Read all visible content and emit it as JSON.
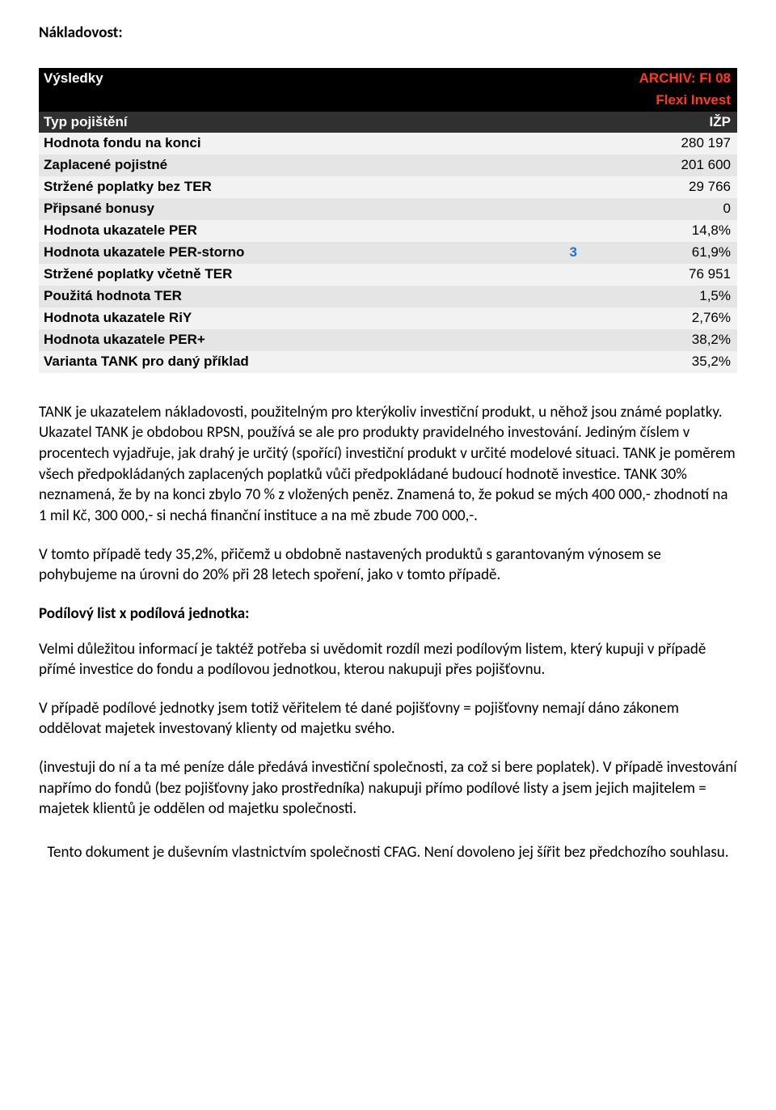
{
  "title": "Nákladovost:",
  "table": {
    "header1": {
      "left": "Výsledky",
      "right": "ARCHIV: FI 08",
      "bg": "#000000",
      "left_color": "#ffffff",
      "right_color": "#ff3b1f"
    },
    "header2": {
      "left": "",
      "right": "Flexi Invest",
      "bg": "#000000",
      "right_color": "#ff3b1f"
    },
    "header3": {
      "left": "Typ pojištění",
      "right": "IŽP",
      "bg": "#303030",
      "right_color": "#ff3b1f"
    },
    "rows": [
      {
        "label": "Hodnota fondu na konci",
        "mid": "",
        "val": "280 197",
        "shade": "lt"
      },
      {
        "label": "Zaplacené pojistné",
        "mid": "",
        "val": "201 600",
        "shade": "md"
      },
      {
        "label": "Stržené poplatky bez TER",
        "mid": "",
        "val": "29 766",
        "shade": "lt"
      },
      {
        "label": "Připsané bonusy",
        "mid": "",
        "val": "0",
        "shade": "md"
      },
      {
        "label": "Hodnota ukazatele PER",
        "mid": "",
        "val": "14,8%",
        "shade": "lt"
      },
      {
        "label": "Hodnota ukazatele PER-storno",
        "mid": "3",
        "val": "61,9%",
        "shade": "md"
      },
      {
        "label": "Stržené poplatky včetně TER",
        "mid": "",
        "val": "76 951",
        "shade": "lt"
      },
      {
        "label": "Použitá hodnota TER",
        "mid": "",
        "val": "1,5%",
        "shade": "md"
      },
      {
        "label": "Hodnota ukazatele RiY",
        "mid": "",
        "val": "2,76%",
        "shade": "lt"
      },
      {
        "label": "Hodnota ukazatele PER+",
        "mid": "",
        "val": "38,2%",
        "shade": "md"
      },
      {
        "label": "Varianta TANK pro daný příklad",
        "mid": "",
        "val": "35,2%",
        "shade": "lt"
      }
    ],
    "shade_lt": "#f2f2f2",
    "shade_md": "#e5e5e5",
    "label_fontweight": "bold",
    "mid_color": "#1e6fd6",
    "fontsize": 17
  },
  "paragraphs": {
    "p1": "TANK je ukazatelem nákladovosti, použitelným pro kterýkoliv investiční produkt, u něhož jsou známé poplatky. Ukazatel TANK je obdobou RPSN, používá se ale pro produkty pravidelného investování. Jediným číslem v procentech vyjadřuje, jak drahý je určitý (spořící) investiční produkt v určité modelové situaci. TANK je poměrem všech předpokládaných zaplacených poplatků vůči předpokládané budoucí hodnotě investice. TANK 30% neznamená, že by na konci zbylo 70 % z vložených peněz. Znamená to, že pokud se mých 400 000,- zhodnotí na 1 mil Kč, 300 000,- si nechá finanční instituce a na mě zbude 700 000,-.",
    "p2": "V tomto případě tedy 35,2%, přičemž u obdobně nastavených produktů s garantovaným výnosem se pohybujeme na úrovni do 20% při 28 letech spoření, jako v tomto případě.",
    "sub": "Podílový list x podílová jednotka:",
    "p3": "Velmi důležitou informací je taktéž potřeba si uvědomit rozdíl mezi podílovým listem, který kupuji v případě přímé investice do fondu a podílovou jednotkou, kterou nakupuji přes pojišťovnu.",
    "p4": "V případě podílové jednotky jsem totiž věřitelem té dané pojišťovny = pojišťovny nemají dáno zákonem oddělovat majetek investovaný klienty od majetku svého.",
    "p5": "(investuji do ní a ta mé peníze dále předává investiční společnosti, za což si bere poplatek). V případě investování napřímo do fondů (bez pojišťovny jako prostředníka) nakupuji přímo podílové listy a jsem jejich majitelem = majetek klientů je oddělen od majetku společnosti.",
    "footer": "Tento dokument je duševním vlastnictvím společnosti CFAG. Není dovoleno jej šířit bez předchozího souhlasu."
  }
}
